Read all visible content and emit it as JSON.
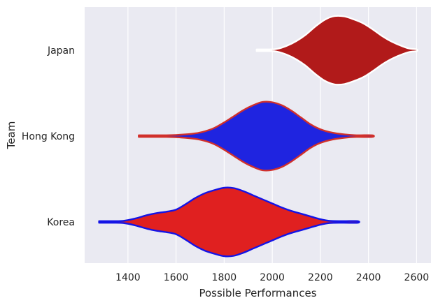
{
  "chart_data": {
    "type": "violin",
    "orientation": "horizontal",
    "title": "",
    "xlabel": "Possible Performances",
    "ylabel": "Team",
    "xlim": [
      1220,
      2660
    ],
    "xticks": [
      1400,
      1600,
      1800,
      2000,
      2200,
      2400,
      2600
    ],
    "grid": true,
    "background": "#eaeaf2",
    "gridColor": "#ffffff",
    "categories": [
      "Japan",
      "Hong Kong",
      "Korea"
    ],
    "series": [
      {
        "name": "Japan",
        "fill": "#b11a1a",
        "edge": "#ffffff",
        "range": [
          1935,
          2600
        ],
        "profile": [
          [
            1935,
            0.01
          ],
          [
            1990,
            0.01
          ],
          [
            2020,
            0.04
          ],
          [
            2060,
            0.13
          ],
          [
            2100,
            0.27
          ],
          [
            2140,
            0.46
          ],
          [
            2180,
            0.7
          ],
          [
            2220,
            0.9
          ],
          [
            2260,
            1.0
          ],
          [
            2300,
            0.99
          ],
          [
            2340,
            0.9
          ],
          [
            2380,
            0.78
          ],
          [
            2420,
            0.6
          ],
          [
            2460,
            0.4
          ],
          [
            2500,
            0.24
          ],
          [
            2540,
            0.12
          ],
          [
            2570,
            0.05
          ],
          [
            2600,
            0.01
          ]
        ]
      },
      {
        "name": "Hong Kong",
        "fill": "#1f24e0",
        "edge": "#d1302b",
        "range": [
          1445,
          2415
        ],
        "profile": [
          [
            1445,
            0.01
          ],
          [
            1500,
            0.01
          ],
          [
            1560,
            0.02
          ],
          [
            1620,
            0.04
          ],
          [
            1680,
            0.08
          ],
          [
            1720,
            0.14
          ],
          [
            1760,
            0.24
          ],
          [
            1800,
            0.4
          ],
          [
            1840,
            0.58
          ],
          [
            1880,
            0.76
          ],
          [
            1920,
            0.9
          ],
          [
            1960,
            1.0
          ],
          [
            2000,
            0.99
          ],
          [
            2040,
            0.9
          ],
          [
            2080,
            0.74
          ],
          [
            2120,
            0.54
          ],
          [
            2160,
            0.34
          ],
          [
            2200,
            0.2
          ],
          [
            2250,
            0.1
          ],
          [
            2300,
            0.05
          ],
          [
            2350,
            0.02
          ],
          [
            2415,
            0.01
          ]
        ]
      },
      {
        "name": "Korea",
        "fill": "#e02020",
        "edge": "#1414e6",
        "range": [
          1280,
          2355
        ],
        "profile": [
          [
            1280,
            0.01
          ],
          [
            1330,
            0.01
          ],
          [
            1380,
            0.03
          ],
          [
            1430,
            0.1
          ],
          [
            1480,
            0.2
          ],
          [
            1520,
            0.26
          ],
          [
            1560,
            0.3
          ],
          [
            1600,
            0.36
          ],
          [
            1640,
            0.52
          ],
          [
            1680,
            0.7
          ],
          [
            1720,
            0.84
          ],
          [
            1760,
            0.93
          ],
          [
            1800,
            1.0
          ],
          [
            1840,
            0.99
          ],
          [
            1880,
            0.9
          ],
          [
            1920,
            0.78
          ],
          [
            1960,
            0.66
          ],
          [
            2000,
            0.54
          ],
          [
            2040,
            0.42
          ],
          [
            2080,
            0.32
          ],
          [
            2120,
            0.24
          ],
          [
            2160,
            0.16
          ],
          [
            2200,
            0.08
          ],
          [
            2240,
            0.03
          ],
          [
            2300,
            0.02
          ],
          [
            2355,
            0.01
          ]
        ]
      }
    ]
  }
}
